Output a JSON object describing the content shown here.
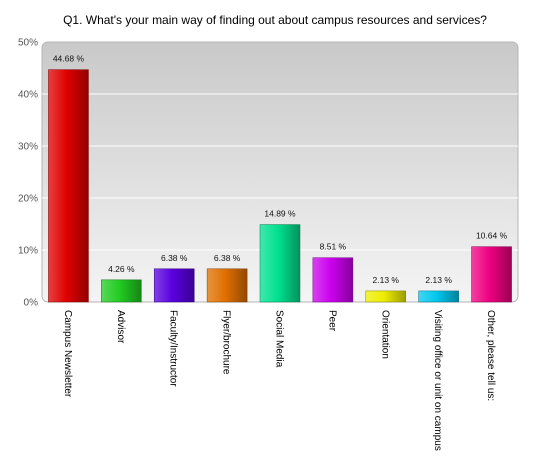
{
  "chart_data": {
    "type": "bar",
    "title": "Q1. What's your main way of finding out about campus resources and services?",
    "xlabel": "",
    "ylabel": "",
    "ylim": [
      0,
      50
    ],
    "y_ticks": [
      "0%",
      "10%",
      "20%",
      "30%",
      "40%",
      "50%"
    ],
    "y_tick_values": [
      0,
      10,
      20,
      30,
      40,
      50
    ],
    "grid": true,
    "categories": [
      "Campus Newsletter",
      "Advisor",
      "Faculty/Instructor",
      "Flyer/brochure",
      "Social Media",
      "Peer",
      "Orientation",
      "Visiting office or unit on campus",
      "Other, please tell us:"
    ],
    "values": [
      44.68,
      4.26,
      6.38,
      6.38,
      14.89,
      8.51,
      2.13,
      2.13,
      10.64
    ],
    "value_labels": [
      "44.68 %",
      "4.26 %",
      "6.38 %",
      "6.38 %",
      "14.89 %",
      "8.51 %",
      "2.13 %",
      "2.13 %",
      "10.64 %"
    ],
    "colors": [
      "#e00000",
      "#22cc22",
      "#5a00e0",
      "#e07000",
      "#00e090",
      "#cc00ee",
      "#eeee00",
      "#00c8ee",
      "#ee0080"
    ],
    "plot_background": "#e4e4e4",
    "grid_color": "#ffffff"
  }
}
